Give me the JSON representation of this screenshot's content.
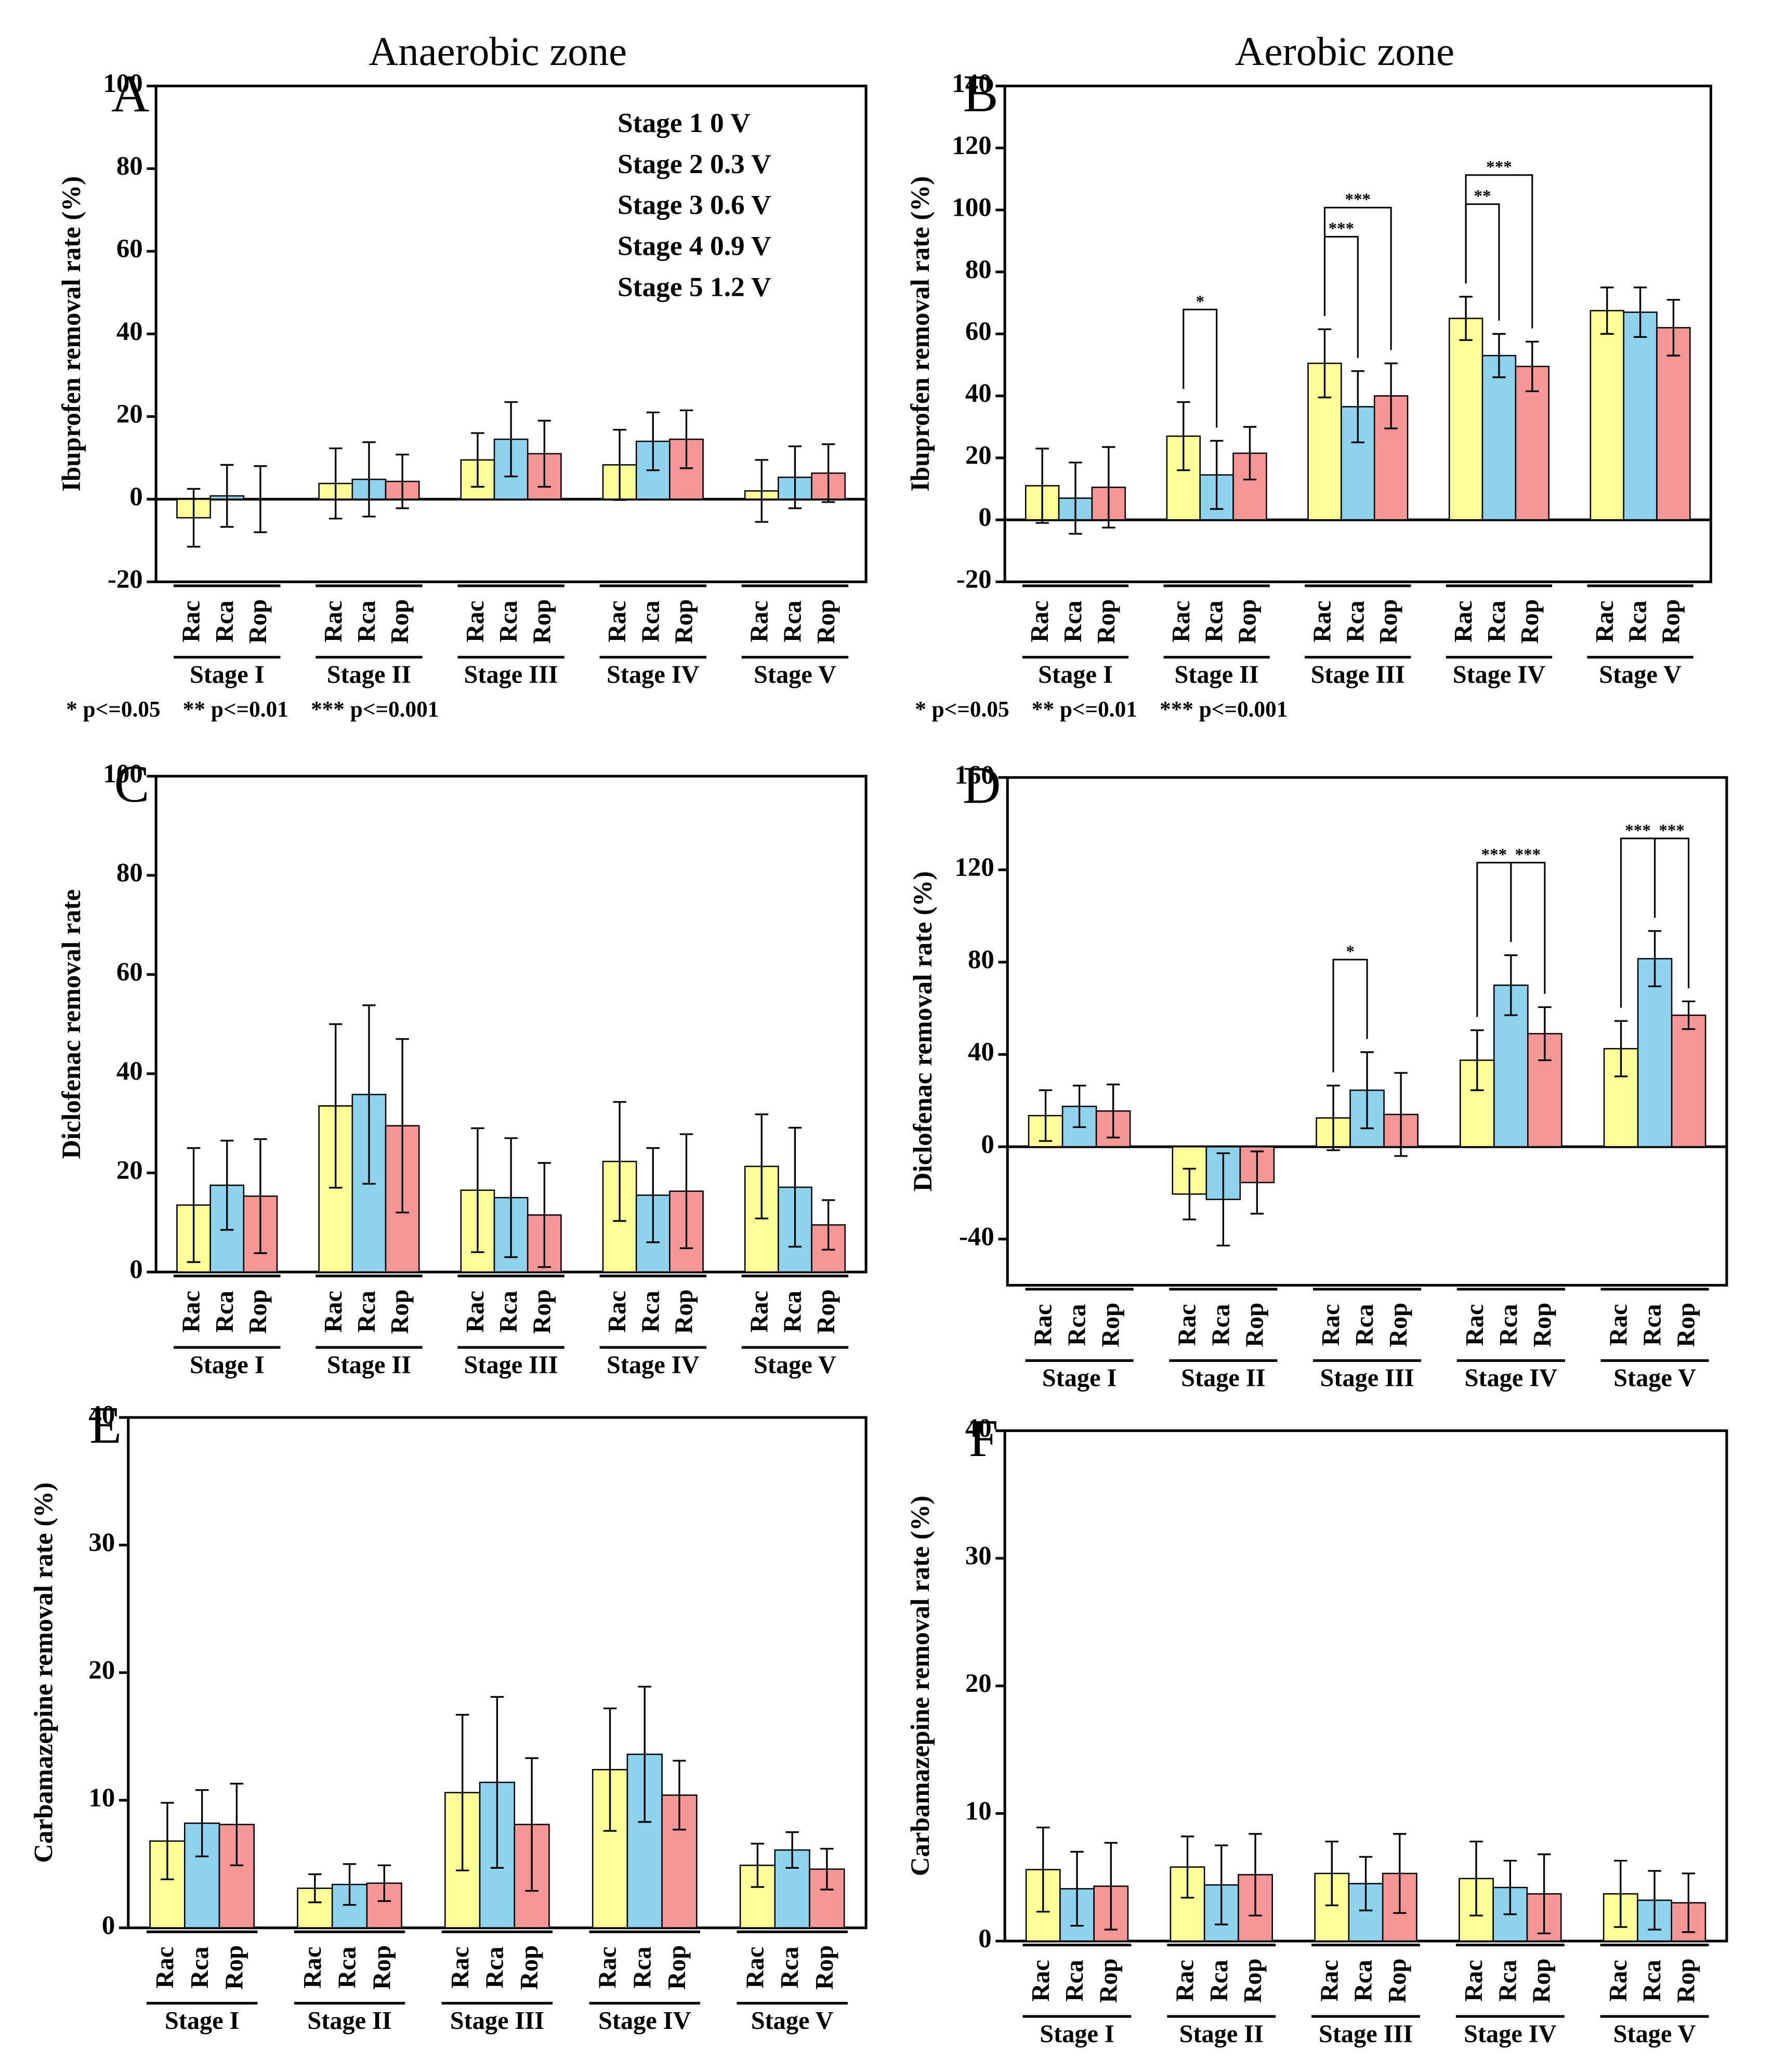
{
  "chart_data": [
    {
      "type": "bar",
      "label": "A",
      "title": "Anaerobic zone",
      "ylabel": "Ibuprofen removal rate (%)",
      "categories": [
        "Stage I",
        "Stage II",
        "Stage III",
        "Stage IV",
        "Stage V"
      ],
      "series": [
        {
          "name": "Rac",
          "color": "#ffff99",
          "values": [
            -4.5,
            3.8,
            9.5,
            8.3,
            2
          ],
          "errors": [
            7,
            8.5,
            6.5,
            8.5,
            7.5
          ]
        },
        {
          "name": "Rca",
          "color": "#8ed2ee",
          "values": [
            0.8,
            4.8,
            14.5,
            14,
            5.3
          ],
          "errors": [
            7.5,
            9,
            9,
            7,
            7.5
          ]
        },
        {
          "name": "Rop",
          "color": "#f59797",
          "values": [
            0,
            4.3,
            11,
            14.5,
            6.3
          ],
          "errors": [
            8,
            6.5,
            8,
            7,
            7
          ]
        }
      ],
      "ylim": [
        -20,
        100
      ],
      "yticks": [
        -20,
        0,
        20,
        40,
        60,
        80,
        100
      ],
      "notes": [
        "Stage 1 0 V",
        "Stage 2 0.3 V",
        "Stage 3 0.6 V",
        "Stage 4 0.9 V",
        "Stage 5 1.2 V"
      ],
      "footnote": "* p<=0.05    ** p<=0.01    *** p<=0.001",
      "significance": []
    },
    {
      "type": "bar",
      "label": "B",
      "title": "Aerobic zone",
      "ylabel": "Ibuprofen removal rate (%)",
      "categories": [
        "Stage I",
        "Stage II",
        "Stage III",
        "Stage IV",
        "Stage V"
      ],
      "series": [
        {
          "name": "Rac",
          "color": "#ffff99",
          "values": [
            11,
            27,
            50.5,
            65,
            67.5
          ],
          "errors": [
            12,
            11,
            11,
            7,
            7.5
          ]
        },
        {
          "name": "Rca",
          "color": "#8ed2ee",
          "values": [
            7,
            14.5,
            36.5,
            53,
            67
          ],
          "errors": [
            11.5,
            11,
            11.5,
            7,
            8
          ]
        },
        {
          "name": "Rop",
          "color": "#f59797",
          "values": [
            10.5,
            21.5,
            40,
            49.5,
            62
          ],
          "errors": [
            13,
            8.5,
            10.5,
            8,
            9
          ]
        }
      ],
      "ylim": [
        -20,
        140
      ],
      "yticks": [
        -20,
        0,
        20,
        40,
        60,
        80,
        100,
        120,
        140
      ],
      "footnote": "* p<=0.05    ** p<=0.01    *** p<=0.001",
      "significance": [
        {
          "category": "Stage II",
          "series": [
            "Rac",
            "Rca"
          ],
          "label": "*"
        },
        {
          "category": "Stage III",
          "series": [
            "Rac",
            "Rca"
          ],
          "label": "***"
        },
        {
          "category": "Stage III",
          "series": [
            "Rac",
            "Rop"
          ],
          "label": "***"
        },
        {
          "category": "Stage IV",
          "series": [
            "Rac",
            "Rca"
          ],
          "label": "**"
        },
        {
          "category": "Stage IV",
          "series": [
            "Rac",
            "Rop"
          ],
          "label": "***"
        }
      ]
    },
    {
      "type": "bar",
      "label": "C",
      "ylabel": "Diclofenac removal rate",
      "categories": [
        "Stage I",
        "Stage II",
        "Stage III",
        "Stage IV",
        "Stage V"
      ],
      "series": [
        {
          "name": "Rac",
          "color": "#ffff99",
          "values": [
            13.5,
            33.5,
            16.5,
            22.3,
            21.3
          ],
          "errors": [
            11.5,
            16.5,
            12.5,
            12,
            10.5
          ]
        },
        {
          "name": "Rca",
          "color": "#8ed2ee",
          "values": [
            17.5,
            35.8,
            15,
            15.5,
            17.1
          ],
          "errors": [
            9,
            18,
            12,
            9.5,
            12
          ]
        },
        {
          "name": "Rop",
          "color": "#f59797",
          "values": [
            15.3,
            29.5,
            11.5,
            16.3,
            9.5
          ],
          "errors": [
            11.5,
            17.5,
            10.5,
            11.5,
            5
          ]
        }
      ],
      "ylim": [
        0,
        100
      ],
      "yticks": [
        0,
        20,
        40,
        60,
        80,
        100
      ],
      "significance": []
    },
    {
      "type": "bar",
      "label": "D",
      "ylabel": "Diclofenac removal rate (%)",
      "categories": [
        "Stage I",
        "Stage II",
        "Stage III",
        "Stage IV",
        "Stage V"
      ],
      "series": [
        {
          "name": "Rac",
          "color": "#ffff99",
          "values": [
            13.5,
            -20.5,
            12.5,
            37.5,
            42.5
          ],
          "errors": [
            11,
            11,
            14,
            13,
            12
          ]
        },
        {
          "name": "Rca",
          "color": "#8ed2ee",
          "values": [
            17.5,
            -22.8,
            24.5,
            70,
            81.5
          ],
          "errors": [
            9,
            20,
            16.5,
            13,
            12
          ]
        },
        {
          "name": "Rop",
          "color": "#f59797",
          "values": [
            15.5,
            -15.5,
            14,
            49,
            57
          ],
          "errors": [
            11.5,
            13.5,
            18,
            11.5,
            6
          ]
        }
      ],
      "ylim": [
        -60,
        160
      ],
      "yticks": [
        -40,
        0,
        40,
        80,
        120,
        160
      ],
      "significance": [
        {
          "category": "Stage III",
          "series": [
            "Rac",
            "Rca"
          ],
          "label": "*"
        },
        {
          "category": "Stage IV",
          "series": [
            "Rac",
            "Rca"
          ],
          "label": "***"
        },
        {
          "category": "Stage IV",
          "series": [
            "Rca",
            "Rop"
          ],
          "label": "***"
        },
        {
          "category": "Stage V",
          "series": [
            "Rac",
            "Rca"
          ],
          "label": "***"
        },
        {
          "category": "Stage V",
          "series": [
            "Rca",
            "Rop"
          ],
          "label": "***"
        }
      ]
    },
    {
      "type": "bar",
      "label": "E",
      "ylabel": "Carbamazepine removal rate (%)",
      "categories": [
        "Stage I",
        "Stage II",
        "Stage III",
        "Stage IV",
        "Stage V"
      ],
      "series": [
        {
          "name": "Rac",
          "color": "#ffff99",
          "values": [
            6.8,
            3.1,
            10.6,
            12.4,
            4.9
          ],
          "errors": [
            3,
            1.1,
            6.1,
            4.8,
            1.7
          ]
        },
        {
          "name": "Rca",
          "color": "#8ed2ee",
          "values": [
            8.2,
            3.4,
            11.4,
            13.6,
            6.1
          ],
          "errors": [
            2.6,
            1.6,
            6.7,
            5.3,
            1.4
          ]
        },
        {
          "name": "Rop",
          "color": "#f59797",
          "values": [
            8.1,
            3.5,
            8.1,
            10.4,
            4.6
          ],
          "errors": [
            3.2,
            1.4,
            5.2,
            2.7,
            1.6
          ]
        }
      ],
      "ylim": [
        0,
        40
      ],
      "yticks": [
        0,
        10,
        20,
        30,
        40
      ],
      "significance": []
    },
    {
      "type": "bar",
      "label": "F",
      "ylabel": "Carbamazepine removal rate (%)",
      "categories": [
        "Stage I",
        "Stage II",
        "Stage III",
        "Stage IV",
        "Stage V"
      ],
      "series": [
        {
          "name": "Rac",
          "color": "#ffff99",
          "values": [
            5.6,
            5.8,
            5.3,
            4.9,
            3.7
          ],
          "errors": [
            3.3,
            2.4,
            2.5,
            2.9,
            2.6
          ]
        },
        {
          "name": "Rca",
          "color": "#8ed2ee",
          "values": [
            4.1,
            4.4,
            4.5,
            4.2,
            3.2
          ],
          "errors": [
            2.9,
            3.1,
            2.1,
            2.1,
            2.3
          ]
        },
        {
          "name": "Rop",
          "color": "#f59797",
          "values": [
            4.3,
            5.2,
            5.3,
            3.7,
            3.0
          ],
          "errors": [
            3.4,
            3.2,
            3.1,
            3.1,
            2.3
          ]
        }
      ],
      "ylim": [
        0,
        40
      ],
      "yticks": [
        0,
        10,
        20,
        30,
        40
      ],
      "significance": []
    }
  ]
}
